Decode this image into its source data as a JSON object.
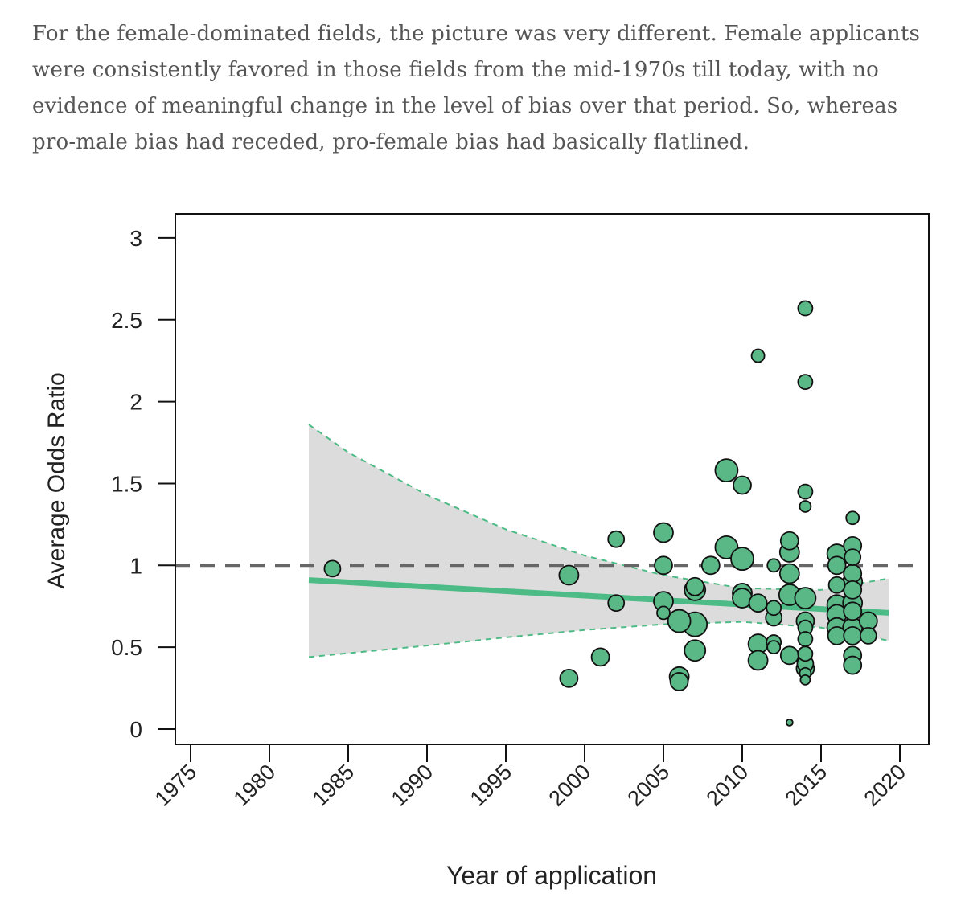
{
  "article": {
    "paragraph": "For the female-dominated fields, the picture was very different. Female applicants were consistently favored in those fields from the mid-1970s till today, with no evidence of meaningful change in the level of bias over that period. So, whereas pro-male bias had receded, pro-female bias had basically flatlined."
  },
  "chart_data": {
    "type": "scatter",
    "title": "",
    "xlabel": "Year of application",
    "ylabel": "Average Odds Ratio",
    "xlim": [
      1975,
      2020
    ],
    "ylim": [
      0,
      3
    ],
    "xticks": [
      "1975",
      "1980",
      "1985",
      "1990",
      "1995",
      "2000",
      "2005",
      "2010",
      "2015",
      "2020"
    ],
    "yticks": [
      "0",
      "0.5",
      "1",
      "1.5",
      "2",
      "2.5",
      "3"
    ],
    "reference_line": {
      "y": 1,
      "style": "dashed",
      "color": "#666666"
    },
    "trend": {
      "x": [
        1982.5,
        2019.3
      ],
      "y": [
        0.91,
        0.71
      ],
      "ci_lower": [
        [
          1982.5,
          0.44
        ],
        [
          1990,
          0.51
        ],
        [
          1995,
          0.56
        ],
        [
          2000,
          0.605
        ],
        [
          2005,
          0.64
        ],
        [
          2010,
          0.655
        ],
        [
          2015,
          0.62
        ],
        [
          2019.3,
          0.54
        ]
      ],
      "ci_upper": [
        [
          1982.5,
          1.86
        ],
        [
          1985,
          1.69
        ],
        [
          1990,
          1.43
        ],
        [
          1995,
          1.22
        ],
        [
          2000,
          1.06
        ],
        [
          2005,
          0.94
        ],
        [
          2010,
          0.86
        ],
        [
          2015,
          0.85
        ],
        [
          2019.3,
          0.92
        ]
      ],
      "color": "#4dbb85",
      "band_color": "#dcdcdc"
    },
    "point_color": "#5ab886",
    "points": [
      {
        "x": 1984,
        "y": 0.98,
        "size": 10
      },
      {
        "x": 1999,
        "y": 0.94,
        "size": 12
      },
      {
        "x": 1999,
        "y": 0.31,
        "size": 11
      },
      {
        "x": 2001,
        "y": 0.44,
        "size": 11
      },
      {
        "x": 2002,
        "y": 1.16,
        "size": 10
      },
      {
        "x": 2002,
        "y": 0.77,
        "size": 10
      },
      {
        "x": 2005,
        "y": 1.2,
        "size": 12
      },
      {
        "x": 2005,
        "y": 1.0,
        "size": 11
      },
      {
        "x": 2005,
        "y": 0.78,
        "size": 12
      },
      {
        "x": 2005,
        "y": 0.71,
        "size": 8
      },
      {
        "x": 2006,
        "y": 0.66,
        "size": 14
      },
      {
        "x": 2006,
        "y": 0.32,
        "size": 12
      },
      {
        "x": 2006,
        "y": 0.29,
        "size": 11
      },
      {
        "x": 2007,
        "y": 0.85,
        "size": 13
      },
      {
        "x": 2007,
        "y": 0.87,
        "size": 11
      },
      {
        "x": 2007,
        "y": 0.64,
        "size": 15
      },
      {
        "x": 2007,
        "y": 0.48,
        "size": 13
      },
      {
        "x": 2008,
        "y": 1.0,
        "size": 11
      },
      {
        "x": 2009,
        "y": 1.58,
        "size": 14
      },
      {
        "x": 2009,
        "y": 1.11,
        "size": 14
      },
      {
        "x": 2010,
        "y": 1.49,
        "size": 11
      },
      {
        "x": 2010,
        "y": 1.04,
        "size": 14
      },
      {
        "x": 2010,
        "y": 0.83,
        "size": 12
      },
      {
        "x": 2010,
        "y": 0.8,
        "size": 12
      },
      {
        "x": 2011,
        "y": 2.28,
        "size": 8
      },
      {
        "x": 2011,
        "y": 0.77,
        "size": 11
      },
      {
        "x": 2011,
        "y": 0.52,
        "size": 12
      },
      {
        "x": 2011,
        "y": 0.42,
        "size": 12
      },
      {
        "x": 2012,
        "y": 1.0,
        "size": 8
      },
      {
        "x": 2012,
        "y": 0.74,
        "size": 9
      },
      {
        "x": 2012,
        "y": 0.68,
        "size": 10
      },
      {
        "x": 2012,
        "y": 0.53,
        "size": 9
      },
      {
        "x": 2012,
        "y": 0.5,
        "size": 8
      },
      {
        "x": 2013,
        "y": 1.15,
        "size": 11
      },
      {
        "x": 2013,
        "y": 1.08,
        "size": 12
      },
      {
        "x": 2013,
        "y": 0.95,
        "size": 12
      },
      {
        "x": 2013,
        "y": 0.82,
        "size": 13
      },
      {
        "x": 2013,
        "y": 0.45,
        "size": 11
      },
      {
        "x": 2013,
        "y": 0.04,
        "size": 4
      },
      {
        "x": 2014,
        "y": 2.57,
        "size": 9
      },
      {
        "x": 2014,
        "y": 2.12,
        "size": 9
      },
      {
        "x": 2014,
        "y": 1.45,
        "size": 9
      },
      {
        "x": 2014,
        "y": 1.36,
        "size": 7
      },
      {
        "x": 2014,
        "y": 0.8,
        "size": 13
      },
      {
        "x": 2014,
        "y": 0.66,
        "size": 11
      },
      {
        "x": 2014,
        "y": 0.62,
        "size": 9
      },
      {
        "x": 2014,
        "y": 0.55,
        "size": 9
      },
      {
        "x": 2014,
        "y": 0.46,
        "size": 9
      },
      {
        "x": 2014,
        "y": 0.4,
        "size": 10
      },
      {
        "x": 2014,
        "y": 0.37,
        "size": 11
      },
      {
        "x": 2014,
        "y": 0.34,
        "size": 7
      },
      {
        "x": 2014,
        "y": 0.3,
        "size": 6
      },
      {
        "x": 2016,
        "y": 1.07,
        "size": 12
      },
      {
        "x": 2016,
        "y": 1.0,
        "size": 11
      },
      {
        "x": 2016,
        "y": 0.88,
        "size": 10
      },
      {
        "x": 2016,
        "y": 0.76,
        "size": 12
      },
      {
        "x": 2016,
        "y": 0.7,
        "size": 12
      },
      {
        "x": 2016,
        "y": 0.62,
        "size": 12
      },
      {
        "x": 2016,
        "y": 0.57,
        "size": 11
      },
      {
        "x": 2017,
        "y": 1.29,
        "size": 8
      },
      {
        "x": 2017,
        "y": 1.12,
        "size": 11
      },
      {
        "x": 2017,
        "y": 1.05,
        "size": 10
      },
      {
        "x": 2017,
        "y": 0.95,
        "size": 11
      },
      {
        "x": 2017,
        "y": 0.9,
        "size": 12
      },
      {
        "x": 2017,
        "y": 0.85,
        "size": 11
      },
      {
        "x": 2017,
        "y": 0.77,
        "size": 12
      },
      {
        "x": 2017,
        "y": 0.72,
        "size": 11
      },
      {
        "x": 2017,
        "y": 0.62,
        "size": 12
      },
      {
        "x": 2017,
        "y": 0.57,
        "size": 11
      },
      {
        "x": 2017,
        "y": 0.45,
        "size": 11
      },
      {
        "x": 2017,
        "y": 0.39,
        "size": 11
      },
      {
        "x": 2018,
        "y": 0.66,
        "size": 11
      },
      {
        "x": 2018,
        "y": 0.57,
        "size": 10
      }
    ]
  }
}
